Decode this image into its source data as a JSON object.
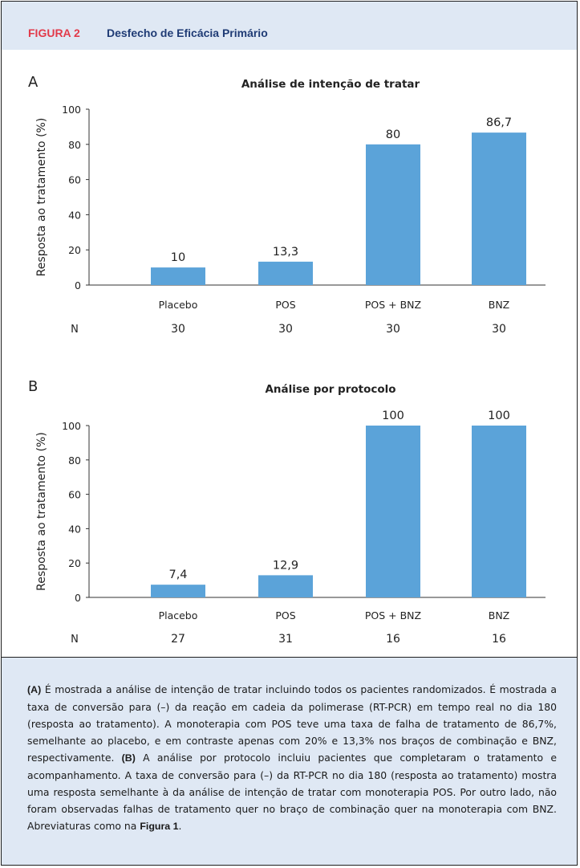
{
  "header": {
    "tag": "FIGURA 2",
    "title": "Desfecho de Eficácia Primário"
  },
  "chart_data": [
    {
      "type": "bar",
      "panel": "A",
      "title": "Análise de intenção de tratar",
      "ylabel": "Resposta ao tratamento (%)",
      "xlabel": "",
      "categories": [
        "Placebo",
        "POS",
        "POS + BNZ",
        "BNZ"
      ],
      "values": [
        10,
        13.3,
        80,
        86.7
      ],
      "value_labels": [
        "10",
        "13,3",
        "80",
        "86,7"
      ],
      "ylim": [
        0,
        100
      ],
      "yticks": [
        "0",
        "20",
        "40",
        "60",
        "80",
        "100"
      ],
      "n_label": "N",
      "n_values": [
        "30",
        "30",
        "30",
        "30"
      ],
      "bar_color": "#5ba3d9"
    },
    {
      "type": "bar",
      "panel": "B",
      "title": "Análise por protocolo",
      "ylabel": "Resposta ao tratamento (%)",
      "xlabel": "",
      "categories": [
        "Placebo",
        "POS",
        "POS + BNZ",
        "BNZ"
      ],
      "values": [
        7.4,
        12.9,
        100,
        100
      ],
      "value_labels": [
        "7,4",
        "12,9",
        "100",
        "100"
      ],
      "ylim": [
        0,
        100
      ],
      "yticks": [
        "0",
        "20",
        "40",
        "60",
        "80",
        "100"
      ],
      "n_label": "N",
      "n_values": [
        "27",
        "31",
        "16",
        "16"
      ],
      "bar_color": "#5ba3d9"
    }
  ],
  "caption": {
    "a_tag": "(A)",
    "a_text": " É mostrada a análise de intenção de tratar incluindo todos os pacientes randomizados. É mostrada a taxa de conversão para (–) da reação em cadeia da polimerase (RT-PCR) em tempo real no dia 180 (resposta ao tratamento). A monoterapia com POS teve uma taxa de falha de tratamento de 86,7%, semelhante ao placebo, e em contraste apenas com 20% e 13,3% nos braços de combinação e BNZ, respectivamente. ",
    "b_tag": "(B)",
    "b_text": " A análise por protocolo incluiu pacientes que completaram o tratamento e acompanhamento. A taxa de conversão para (–) da RT-PCR no dia 180 (resposta ao tratamento) mostra uma resposta semelhante à da análise de intenção de tratar com monoterapia POS. Por outro lado, não foram observadas falhas de tratamento quer no braço de combinação quer na monoterapia com BNZ. Abreviaturas como na ",
    "fig_ref": "Figura 1",
    "end": "."
  }
}
